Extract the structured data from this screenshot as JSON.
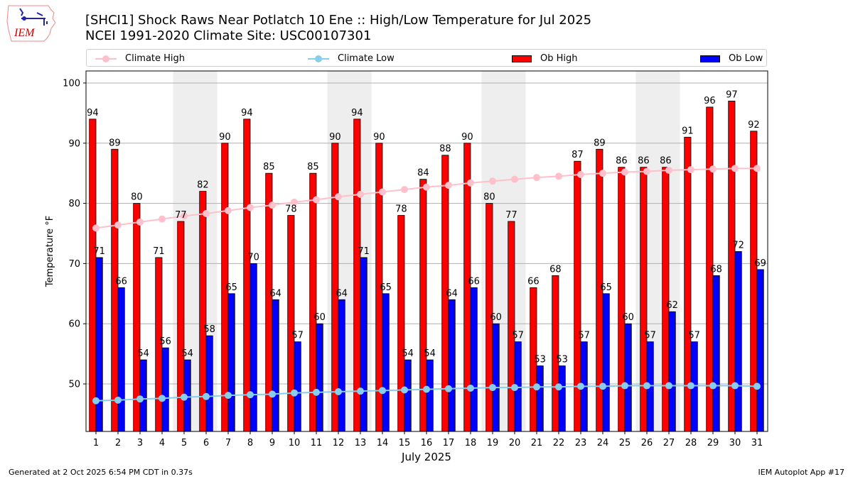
{
  "header": {
    "title_line1": "[SHCI1] Shock Raws Near Potlatch 10 Ene :: High/Low Temperature for Jul 2025",
    "title_line2": "NCEI 1991-2020 Climate Site: USC00107301",
    "logo_text": "IEM"
  },
  "footer": {
    "generated": "Generated at 2 Oct 2025 6:54 PM CDT in 0.37s",
    "app": "IEM Autoplot App #17"
  },
  "colors": {
    "ob_high": "#ff0000",
    "ob_low": "#0000ff",
    "climate_high": "#ffc0cb",
    "climate_low": "#87ceeb",
    "weekend_shade": "#eeeeee",
    "grid": "#b0b0b0"
  },
  "chart_data": {
    "type": "bar",
    "title": "[SHCI1] Shock Raws Near Potlatch 10 Ene :: High/Low Temperature for Jul 2025",
    "subtitle": "NCEI 1991-2020 Climate Site: USC00107301",
    "xlabel": "July 2025",
    "ylabel": "Temperature °F",
    "ylim": [
      42.1,
      102.0
    ],
    "yticks": [
      50,
      60,
      70,
      80,
      90,
      100
    ],
    "grid": "horizontal",
    "legend_position": "top",
    "categories": [
      "1",
      "2",
      "3",
      "4",
      "5",
      "6",
      "7",
      "8",
      "9",
      "10",
      "11",
      "12",
      "13",
      "14",
      "15",
      "16",
      "17",
      "18",
      "19",
      "20",
      "21",
      "22",
      "23",
      "24",
      "25",
      "26",
      "27",
      "28",
      "29",
      "30",
      "31"
    ],
    "shaded_days": [
      [
        5,
        6
      ],
      [
        12,
        13
      ],
      [
        19,
        20
      ],
      [
        26,
        27
      ]
    ],
    "legend": [
      "Climate High",
      "Climate Low",
      "Ob High",
      "Ob Low"
    ],
    "series": [
      {
        "name": "Ob High",
        "type": "bar",
        "values": [
          94,
          89,
          80,
          71,
          77,
          82,
          90,
          94,
          85,
          78,
          85,
          90,
          94,
          90,
          78,
          84,
          88,
          90,
          80,
          77,
          66,
          68,
          87,
          89,
          86,
          86,
          86,
          91,
          96,
          97,
          92
        ]
      },
      {
        "name": "Ob Low",
        "type": "bar",
        "values": [
          71,
          66,
          54,
          56,
          54,
          58,
          65,
          70,
          64,
          57,
          60,
          64,
          71,
          65,
          54,
          54,
          64,
          66,
          60,
          57,
          53,
          53,
          57,
          65,
          60,
          57,
          62,
          57,
          68,
          72,
          69
        ]
      },
      {
        "name": "Climate High",
        "type": "line",
        "values": [
          75.9,
          76.4,
          76.9,
          77.4,
          77.9,
          78.3,
          78.8,
          79.3,
          79.7,
          80.2,
          80.6,
          81.1,
          81.5,
          81.9,
          82.3,
          82.7,
          83.0,
          83.4,
          83.7,
          84.0,
          84.3,
          84.5,
          84.8,
          85.0,
          85.2,
          85.3,
          85.5,
          85.6,
          85.7,
          85.8,
          85.8
        ]
      },
      {
        "name": "Climate Low",
        "type": "line",
        "values": [
          47.2,
          47.3,
          47.5,
          47.6,
          47.8,
          47.9,
          48.1,
          48.2,
          48.3,
          48.5,
          48.6,
          48.7,
          48.8,
          48.9,
          49.0,
          49.1,
          49.2,
          49.3,
          49.4,
          49.4,
          49.5,
          49.5,
          49.6,
          49.6,
          49.7,
          49.7,
          49.7,
          49.7,
          49.7,
          49.7,
          49.6
        ]
      }
    ]
  }
}
